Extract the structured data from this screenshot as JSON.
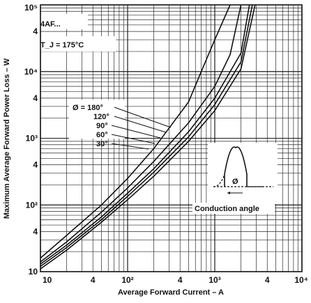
{
  "chart_data": {
    "type": "line",
    "title": "",
    "xlabel": "Average Forward Current – A",
    "ylabel": "Maximum Average Forward Power Loss – W",
    "xscale": "log",
    "yscale": "log",
    "xlim": [
      10,
      10000
    ],
    "ylim": [
      10,
      100000
    ],
    "grid": true,
    "x_tick_labels": [
      "10",
      "4",
      "10²",
      "4",
      "10³",
      "4",
      "10⁴"
    ],
    "y_tick_labels": [
      "10",
      "4",
      "10²",
      "4",
      "10³",
      "4",
      "10⁴",
      "4",
      "10⁵"
    ],
    "annotations": {
      "device": "4AF...",
      "temperature": "T_J = 175°C",
      "phi_symbol": "Ø",
      "conduction_label": "Conduction angle",
      "angle_header": "Ø = 180°",
      "angles": [
        "120°",
        "90°",
        "60°",
        "30°"
      ]
    },
    "series": [
      {
        "name": "180°",
        "x": [
          10,
          20,
          50,
          100,
          200,
          500,
          1000,
          2000,
          2900
        ],
        "y": [
          11,
          21,
          55,
          120,
          270,
          900,
          2600,
          11000,
          100000
        ]
      },
      {
        "name": "120°",
        "x": [
          10,
          20,
          50,
          100,
          200,
          500,
          1000,
          2000,
          2700
        ],
        "y": [
          12,
          23,
          60,
          135,
          310,
          1050,
          3200,
          14000,
          100000
        ]
      },
      {
        "name": "90°",
        "x": [
          10,
          20,
          50,
          100,
          200,
          500,
          1000,
          2000,
          2500
        ],
        "y": [
          13,
          25,
          66,
          150,
          350,
          1250,
          4000,
          19000,
          100000
        ]
      },
      {
        "name": "60°",
        "x": [
          10,
          20,
          50,
          100,
          200,
          500,
          1000,
          1500,
          2000
        ],
        "y": [
          14,
          28,
          78,
          180,
          450,
          1700,
          6000,
          18000,
          100000
        ]
      },
      {
        "name": "30°",
        "x": [
          10,
          20,
          50,
          100,
          200,
          500,
          700,
          1000,
          1500
        ],
        "y": [
          16,
          35,
          100,
          250,
          700,
          3500,
          10000,
          30000,
          100000
        ]
      }
    ]
  }
}
